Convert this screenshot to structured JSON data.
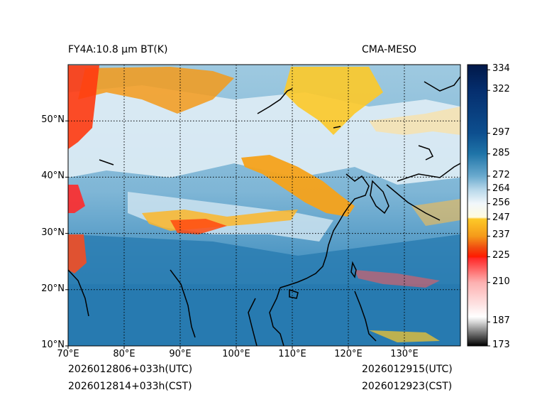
{
  "header": {
    "product_label": "FY4A:10.8 µm BT(K)",
    "model_label": "CMA-MESO"
  },
  "footer": {
    "init_utc": "2026012806+033h(UTC)",
    "init_cst": "2026012814+033h(CST)",
    "valid_utc": "2026012915(UTC)",
    "valid_cst": "2026012923(CST)"
  },
  "map": {
    "lon_range": [
      70,
      140
    ],
    "lat_range": [
      10,
      60
    ],
    "lon_ticks": [
      {
        "value": 70,
        "label": "70°E"
      },
      {
        "value": 80,
        "label": "80°E"
      },
      {
        "value": 90,
        "label": "90°E"
      },
      {
        "value": 100,
        "label": "100°E"
      },
      {
        "value": 110,
        "label": "110°E"
      },
      {
        "value": 120,
        "label": "120°E"
      },
      {
        "value": 130,
        "label": "130°E"
      }
    ],
    "lat_ticks": [
      {
        "value": 10,
        "label": "10°N"
      },
      {
        "value": 20,
        "label": "20°N"
      },
      {
        "value": 30,
        "label": "30°N"
      },
      {
        "value": 40,
        "label": "40°N"
      },
      {
        "value": 50,
        "label": "50°N"
      }
    ],
    "gridline_style": "dotted",
    "colors": {
      "background": "#1f74a8",
      "coastline": "#000000"
    }
  },
  "colorbar": {
    "min": 173,
    "max": 337,
    "tick_values": [
      173,
      187,
      210,
      225,
      237,
      247,
      256,
      264,
      272,
      285,
      297,
      322,
      334
    ],
    "tick_labels": [
      "173",
      "187",
      "210",
      "225",
      "237",
      "247",
      "256",
      "264",
      "272",
      "285",
      "297",
      "322",
      "334"
    ],
    "stops": [
      {
        "value": 173,
        "color": "#000000"
      },
      {
        "value": 187,
        "color": "#d8d8d8"
      },
      {
        "value": 190,
        "color": "#ffffff"
      },
      {
        "value": 210,
        "color": "#fdb0b0"
      },
      {
        "value": 224,
        "color": "#ff2a2a"
      },
      {
        "value": 225,
        "color": "#ff1a00"
      },
      {
        "value": 230,
        "color": "#f04a10"
      },
      {
        "value": 237,
        "color": "#f59a1a"
      },
      {
        "value": 247,
        "color": "#fdc928"
      },
      {
        "value": 248,
        "color": "#fffbe0"
      },
      {
        "value": 256,
        "color": "#f1f7fb"
      },
      {
        "value": 264,
        "color": "#b8d8ea"
      },
      {
        "value": 272,
        "color": "#6aaace"
      },
      {
        "value": 285,
        "color": "#1f74a8"
      },
      {
        "value": 297,
        "color": "#0d4f8f"
      },
      {
        "value": 322,
        "color": "#052e6e"
      },
      {
        "value": 337,
        "color": "#011848"
      }
    ]
  }
}
